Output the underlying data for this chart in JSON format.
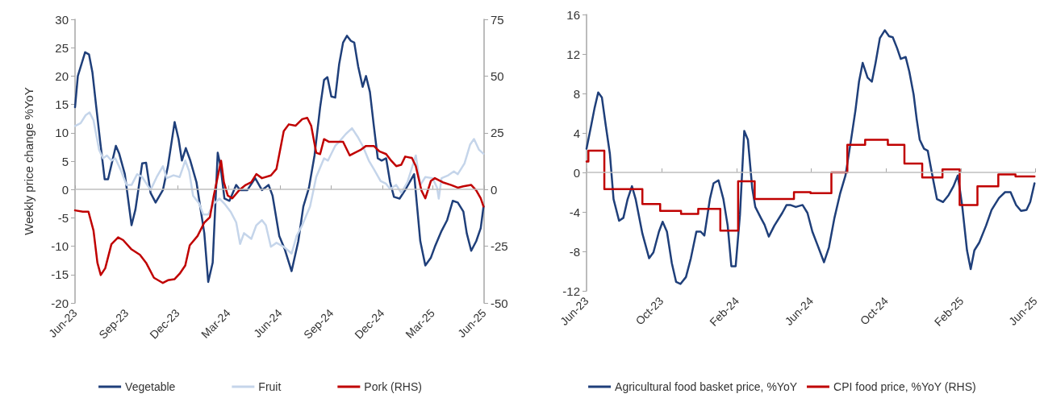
{
  "chart_data": [
    {
      "type": "line",
      "ylabel": "Weekly price change %YoY",
      "legend": "bottom",
      "grid": false,
      "marker": "none",
      "ref_lines": [
        {
          "axis": "y",
          "value": 0,
          "color": "#bfbfbf"
        }
      ],
      "xlim": [
        "2023-06-01",
        "2025-06-01"
      ],
      "xticks": [
        {
          "value": "2023-06-01",
          "label": "Jun-23"
        },
        {
          "value": "2023-09-01",
          "label": "Sep-23"
        },
        {
          "value": "2023-12-01",
          "label": "Dec-23"
        },
        {
          "value": "2024-03-01",
          "label": "Mar-24"
        },
        {
          "value": "2024-06-01",
          "label": "Jun-24"
        },
        {
          "value": "2024-09-01",
          "label": "Sep-24"
        },
        {
          "value": "2024-12-01",
          "label": "Dec-24"
        },
        {
          "value": "2025-03-01",
          "label": "Mar-25"
        },
        {
          "value": "2025-06-01",
          "label": "Jun-25"
        }
      ],
      "ylim": [
        -20,
        30
      ],
      "yticks": [
        -20,
        -15,
        -10,
        -5,
        0,
        5,
        10,
        15,
        20,
        25,
        30
      ],
      "y2lim": [
        -50,
        75
      ],
      "y2ticks": [
        -50,
        -25,
        0,
        25,
        50,
        75
      ],
      "series": [
        {
          "name": "Vegetable",
          "color": "#1f3f7a",
          "x": [
            "2023-06-01",
            "2023-06-06",
            "2023-06-19",
            "2023-06-26",
            "2023-07-02",
            "2023-07-09",
            "2023-07-16",
            "2023-07-24",
            "2023-07-30",
            "2023-08-13",
            "2023-08-19",
            "2023-08-29",
            "2023-09-10",
            "2023-09-17",
            "2023-09-29",
            "2023-10-06",
            "2023-10-14",
            "2023-10-23",
            "2023-11-05",
            "2023-11-14",
            "2023-11-26",
            "2023-12-03",
            "2023-12-09",
            "2023-12-16",
            "2023-12-24",
            "2024-01-04",
            "2024-01-18",
            "2024-01-25",
            "2024-02-02",
            "2024-02-11",
            "2024-02-16",
            "2024-02-23",
            "2024-03-03",
            "2024-03-15",
            "2024-03-22",
            "2024-04-04",
            "2024-04-18",
            "2024-04-30",
            "2024-05-12",
            "2024-05-19",
            "2024-05-31",
            "2024-06-10",
            "2024-06-22",
            "2024-07-04",
            "2024-07-13",
            "2024-07-23",
            "2024-08-02",
            "2024-08-12",
            "2024-08-19",
            "2024-08-25",
            "2024-09-01",
            "2024-09-08",
            "2024-09-15",
            "2024-09-22",
            "2024-09-29",
            "2024-10-06",
            "2024-10-12",
            "2024-10-19",
            "2024-10-27",
            "2024-11-02",
            "2024-11-09",
            "2024-11-16",
            "2024-11-23",
            "2024-11-30",
            "2024-12-08",
            "2024-12-15",
            "2024-12-22",
            "2025-01-01",
            "2025-01-11",
            "2025-01-27",
            "2025-02-07",
            "2025-02-16",
            "2025-02-26",
            "2025-03-05",
            "2025-03-17",
            "2025-03-27",
            "2025-04-06",
            "2025-04-15",
            "2025-04-25",
            "2025-05-01",
            "2025-05-09",
            "2025-05-18",
            "2025-05-26",
            "2025-05-31"
          ],
          "values": [
            14.5,
            20,
            24.2,
            23.8,
            20.7,
            14.5,
            8.4,
            1.8,
            1.8,
            7.7,
            6.3,
            2.7,
            -6.3,
            -3.5,
            4.6,
            4.7,
            -0.6,
            -2.3,
            -0.1,
            4.1,
            11.9,
            8.9,
            5.1,
            7.3,
            5.1,
            1.3,
            -7.7,
            -16.3,
            -12.9,
            6.5,
            4.1,
            -1.6,
            -2,
            0.8,
            -0.1,
            -0.1,
            2,
            -0.1,
            0.8,
            -1.1,
            -8.2,
            -10.6,
            -14.4,
            -9.1,
            -3,
            0.3,
            6,
            14.5,
            19.3,
            19.8,
            16.4,
            16.2,
            22.1,
            25.9,
            27.1,
            26.2,
            25.9,
            21.7,
            18.1,
            20,
            17.2,
            11.2,
            5.5,
            5.1,
            5.5,
            1.3,
            -1.3,
            -1.6,
            -0.1,
            2.7,
            -9.1,
            -13.4,
            -12,
            -10.1,
            -7.3,
            -5.4,
            -2,
            -2.3,
            -3.9,
            -7.7,
            -10.8,
            -9.1,
            -6.8,
            -3
          ]
        },
        {
          "name": "Fruit",
          "color": "#c5d5ea",
          "x": [
            "2023-06-01",
            "2023-06-11",
            "2023-06-20",
            "2023-06-27",
            "2023-07-04",
            "2023-07-14",
            "2023-07-21",
            "2023-07-28",
            "2023-08-05",
            "2023-08-12",
            "2023-08-21",
            "2023-09-01",
            "2023-09-10",
            "2023-09-20",
            "2023-09-29",
            "2023-10-14",
            "2023-10-25",
            "2023-11-05",
            "2023-11-12",
            "2023-11-24",
            "2023-12-05",
            "2023-12-15",
            "2023-12-22",
            "2023-12-29",
            "2024-01-09",
            "2024-01-16",
            "2024-01-25",
            "2024-02-04",
            "2024-02-14",
            "2024-02-23",
            "2024-03-05",
            "2024-03-15",
            "2024-03-22",
            "2024-03-29",
            "2024-04-11",
            "2024-04-20",
            "2024-04-30",
            "2024-05-07",
            "2024-05-16",
            "2024-05-26",
            "2024-06-08",
            "2024-06-22",
            "2024-07-01",
            "2024-07-11",
            "2024-07-25",
            "2024-08-05",
            "2024-08-19",
            "2024-08-26",
            "2024-09-08",
            "2024-09-15",
            "2024-09-27",
            "2024-10-08",
            "2024-10-18",
            "2024-10-27",
            "2024-11-07",
            "2024-11-16",
            "2024-11-28",
            "2024-12-08",
            "2024-12-15",
            "2024-12-26",
            "2025-01-04",
            "2025-01-15",
            "2025-01-30",
            "2025-02-07",
            "2025-02-16",
            "2025-03-01",
            "2025-03-09",
            "2025-03-12",
            "2025-03-17",
            "2025-03-29",
            "2025-04-08",
            "2025-04-15",
            "2025-04-27",
            "2025-05-07",
            "2025-05-14",
            "2025-05-23",
            "2025-05-31"
          ],
          "values": [
            11.2,
            11.7,
            13.1,
            13.6,
            12.2,
            7,
            5.5,
            6,
            5.1,
            5.5,
            3.6,
            0.8,
            0.8,
            2.7,
            2.2,
            -0.1,
            2.2,
            4.1,
            2,
            2.5,
            2.2,
            5.1,
            3.2,
            -1.1,
            -2.5,
            -4.4,
            -4.4,
            -2.5,
            -1.6,
            -2.5,
            -3.9,
            -5.8,
            -9.6,
            -7.7,
            -8.7,
            -6.3,
            -5.4,
            -6.3,
            -10.1,
            -9.4,
            -10.1,
            -11.3,
            -8.2,
            -6.3,
            -3,
            2.2,
            5.5,
            5.1,
            7.7,
            8.4,
            9.8,
            10.8,
            9.3,
            7.7,
            5.1,
            3.6,
            1.5,
            1,
            0.1,
            0.8,
            -0.6,
            1.3,
            6,
            0.8,
            2.2,
            2,
            0.3,
            -1.6,
            2,
            2.5,
            3.2,
            2.7,
            4.6,
            7.9,
            8.9,
            7,
            6.3
          ]
        },
        {
          "name": "Pork (RHS)",
          "color": "#c00000",
          "axis": "y2",
          "x": [
            "2023-06-01",
            "2023-06-15",
            "2023-06-25",
            "2023-07-04",
            "2023-07-11",
            "2023-07-17",
            "2023-07-25",
            "2023-08-05",
            "2023-08-17",
            "2023-08-26",
            "2023-09-10",
            "2023-09-25",
            "2023-10-06",
            "2023-10-20",
            "2023-11-05",
            "2023-11-14",
            "2023-11-26",
            "2023-12-05",
            "2023-12-15",
            "2023-12-23",
            "2024-01-06",
            "2024-01-18",
            "2024-01-28",
            "2024-02-04",
            "2024-02-12",
            "2024-02-17",
            "2024-02-22",
            "2024-02-29",
            "2024-03-08",
            "2024-03-20",
            "2024-04-01",
            "2024-04-11",
            "2024-04-20",
            "2024-04-30",
            "2024-05-16",
            "2024-05-26",
            "2024-06-08",
            "2024-06-17",
            "2024-06-29",
            "2024-07-11",
            "2024-07-20",
            "2024-07-27",
            "2024-08-05",
            "2024-08-12",
            "2024-08-19",
            "2024-08-28",
            "2024-09-10",
            "2024-09-22",
            "2024-10-04",
            "2024-10-13",
            "2024-10-23",
            "2024-11-02",
            "2024-11-16",
            "2024-11-26",
            "2024-12-08",
            "2024-12-17",
            "2024-12-26",
            "2025-01-04",
            "2025-01-11",
            "2025-01-23",
            "2025-01-30",
            "2025-02-09",
            "2025-02-16",
            "2025-02-26",
            "2025-03-05",
            "2025-03-19",
            "2025-04-03",
            "2025-04-15",
            "2025-04-25",
            "2025-05-09",
            "2025-05-18",
            "2025-05-26",
            "2025-05-31"
          ],
          "values": [
            -9.2,
            -9.8,
            -9.8,
            -18.1,
            -32.3,
            -37.7,
            -34.7,
            -24.1,
            -21.1,
            -22.3,
            -26.4,
            -28.8,
            -32.3,
            -38.9,
            -41.2,
            -40,
            -39.5,
            -37.1,
            -33.5,
            -24.6,
            -20.5,
            -14.6,
            -12.2,
            -2.7,
            6.8,
            12.7,
            3.2,
            -2.7,
            -3.9,
            -0.4,
            2,
            3.2,
            6.8,
            5,
            6.2,
            9.1,
            25.7,
            28.7,
            28.1,
            31,
            31.6,
            28.1,
            16.2,
            15.6,
            22.2,
            21,
            21,
            21,
            15,
            16.2,
            17.4,
            19.2,
            19.2,
            16.8,
            15.6,
            12.7,
            10.3,
            10.9,
            14.5,
            13.9,
            10.3,
            -0.4,
            -3.9,
            3.8,
            5,
            3.2,
            2,
            0.8,
            1.4,
            2,
            -0.4,
            -3.9,
            -7.5
          ]
        }
      ]
    },
    {
      "type": "line",
      "legend": "bottom",
      "grid": false,
      "marker": "none",
      "ref_lines": [
        {
          "axis": "y",
          "value": 0,
          "color": "#bfbfbf"
        }
      ],
      "xlim": [
        "2023-06-01",
        "2025-06-01"
      ],
      "xticks": [
        {
          "value": "2023-06-01",
          "label": "Jun-23"
        },
        {
          "value": "2023-10-01",
          "label": "Oct-23"
        },
        {
          "value": "2024-02-01",
          "label": "Feb-24"
        },
        {
          "value": "2024-06-01",
          "label": "Jun-24"
        },
        {
          "value": "2024-10-01",
          "label": "Oct-24"
        },
        {
          "value": "2025-02-01",
          "label": "Feb-25"
        },
        {
          "value": "2025-06-01",
          "label": "Jun-25"
        }
      ],
      "ylim": [
        -12,
        16
      ],
      "yticks": [
        -12,
        -8,
        -4,
        0,
        4,
        8,
        12,
        16
      ],
      "series": [
        {
          "name": "Agricultural food basket price, %YoY",
          "color": "#1f3f7a",
          "x": [
            "2023-06-01",
            "2023-06-09",
            "2023-06-14",
            "2023-06-20",
            "2023-06-26",
            "2023-07-02",
            "2023-07-09",
            "2023-07-15",
            "2023-07-24",
            "2023-07-31",
            "2023-08-07",
            "2023-08-14",
            "2023-08-20",
            "2023-08-31",
            "2023-09-11",
            "2023-09-18",
            "2023-09-27",
            "2023-10-03",
            "2023-10-10",
            "2023-10-18",
            "2023-10-25",
            "2023-11-01",
            "2023-11-10",
            "2023-11-18",
            "2023-11-27",
            "2023-12-04",
            "2023-12-10",
            "2023-12-19",
            "2023-12-25",
            "2024-01-02",
            "2024-01-10",
            "2024-01-17",
            "2024-01-23",
            "2024-01-30",
            "2024-02-06",
            "2024-02-13",
            "2024-02-19",
            "2024-02-26",
            "2024-03-02",
            "2024-03-11",
            "2024-03-17",
            "2024-03-24",
            "2024-04-02",
            "2024-04-15",
            "2024-04-22",
            "2024-04-28",
            "2024-05-07",
            "2024-05-18",
            "2024-05-26",
            "2024-06-03",
            "2024-06-11",
            "2024-06-22",
            "2024-06-30",
            "2024-07-09",
            "2024-07-18",
            "2024-07-27",
            "2024-08-05",
            "2024-08-12",
            "2024-08-18",
            "2024-08-24",
            "2024-09-01",
            "2024-09-08",
            "2024-09-14",
            "2024-09-21",
            "2024-09-29",
            "2024-10-06",
            "2024-10-12",
            "2024-10-19",
            "2024-10-25",
            "2024-11-02",
            "2024-11-08",
            "2024-11-15",
            "2024-11-20",
            "2024-11-25",
            "2024-12-02",
            "2024-12-08",
            "2024-12-17",
            "2024-12-23",
            "2025-01-02",
            "2025-01-11",
            "2025-01-19",
            "2025-01-26",
            "2025-02-02",
            "2025-02-10",
            "2025-02-16",
            "2025-02-22",
            "2025-03-02",
            "2025-03-13",
            "2025-03-22",
            "2025-04-03",
            "2025-04-13",
            "2025-04-22",
            "2025-05-01",
            "2025-05-09",
            "2025-05-18",
            "2025-05-24",
            "2025-05-31"
          ],
          "values": [
            2.4,
            4.9,
            6.5,
            8.1,
            7.6,
            4.9,
            1.9,
            -2.7,
            -4.9,
            -4.6,
            -2.7,
            -1.4,
            -2.7,
            -6.2,
            -8.7,
            -8.1,
            -6,
            -5,
            -6,
            -9.2,
            -11.1,
            -11.3,
            -10.6,
            -8.7,
            -6,
            -6,
            -6.4,
            -2.7,
            -1.1,
            -0.8,
            -2.7,
            -5.4,
            -9.5,
            -9.5,
            -4.3,
            4.2,
            3.3,
            -1.6,
            -3.5,
            -4.6,
            -5.3,
            -6.5,
            -5.4,
            -4.1,
            -3.3,
            -3.3,
            -3.5,
            -3.3,
            -4.1,
            -6,
            -7.3,
            -9.1,
            -7.6,
            -4.6,
            -2.2,
            -0.3,
            3.3,
            6.2,
            9.2,
            11.1,
            9.6,
            9.2,
            11.1,
            13.6,
            14.4,
            13.8,
            13.7,
            12.6,
            11.5,
            11.7,
            10.2,
            7.9,
            5.4,
            3.3,
            2.4,
            2.2,
            -0.8,
            -2.7,
            -3,
            -2.3,
            -1.4,
            -0.3,
            -3.3,
            -7.9,
            -9.8,
            -7.9,
            -7.1,
            -5.4,
            -3.8,
            -2.6,
            -2,
            -2,
            -3.3,
            -3.9,
            -3.8,
            -3,
            -1.1
          ]
        },
        {
          "name": "CPI food price, %YoY (RHS)",
          "color": "#c00000",
          "type": "step",
          "x": [
            "2023-06-01",
            "2023-06-04",
            "2023-06-30",
            "2023-08-31",
            "2023-09-29",
            "2023-11-02",
            "2023-11-30",
            "2024-01-05",
            "2024-02-03",
            "2024-03-01",
            "2024-05-04",
            "2024-05-31",
            "2024-07-04",
            "2024-07-30",
            "2024-08-28",
            "2024-10-04",
            "2024-10-31",
            "2024-11-29",
            "2025-01-01",
            "2025-01-29",
            "2025-02-27",
            "2025-04-02",
            "2025-04-30",
            "2025-05-31"
          ],
          "values": [
            1.1,
            2.2,
            -1.7,
            -3.2,
            -3.9,
            -4.2,
            -3.7,
            -5.9,
            -0.9,
            -2.7,
            -2.0,
            -2.1,
            0,
            2.8,
            3.3,
            2.8,
            0.9,
            -0.5,
            0.3,
            -3.3,
            -1.4,
            -0.2,
            -0.4,
            -0.4
          ]
        }
      ]
    }
  ]
}
